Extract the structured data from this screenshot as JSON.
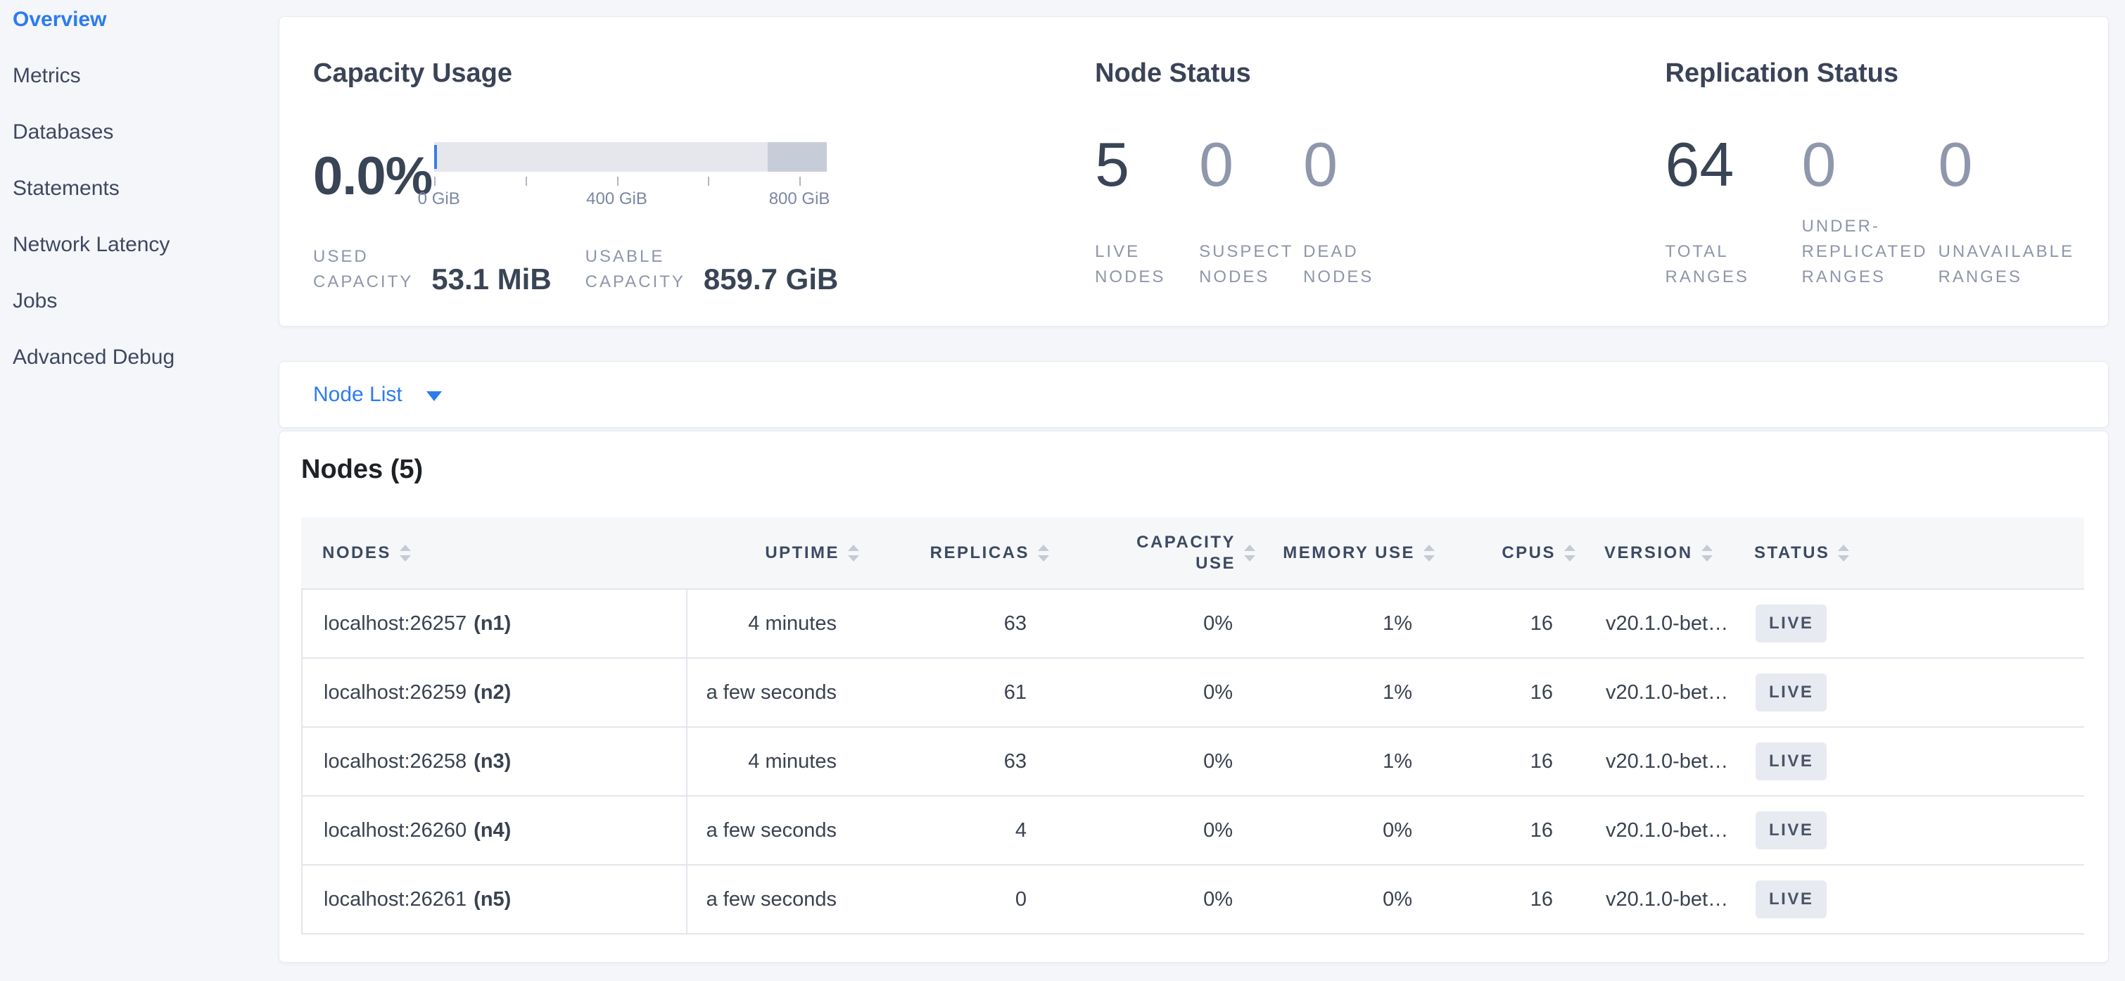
{
  "colors": {
    "accent_blue": "#2d7bf0",
    "bar_light": "#e5e7ed",
    "bar_dark": "#c6ccd8",
    "used_marker": "#3a7de2",
    "badge_bg": "#e8eaf1",
    "page_bg": "#f4f6fa"
  },
  "sidebar": {
    "items": [
      {
        "label": "Overview",
        "active": true
      },
      {
        "label": "Metrics",
        "active": false
      },
      {
        "label": "Databases",
        "active": false
      },
      {
        "label": "Statements",
        "active": false
      },
      {
        "label": "Network Latency",
        "active": false
      },
      {
        "label": "Jobs",
        "active": false
      },
      {
        "label": "Advanced Debug",
        "active": false
      }
    ]
  },
  "capacity": {
    "title": "Capacity Usage",
    "percent": "0.0%",
    "axis_labels": [
      "0 GiB",
      "400 GiB",
      "800 GiB"
    ],
    "used": {
      "label_line1": "USED",
      "label_line2": "CAPACITY",
      "value": "53.1 MiB"
    },
    "usable": {
      "label_line1": "USABLE",
      "label_line2": "CAPACITY",
      "value": "859.7 GiB"
    }
  },
  "nodeStatus": {
    "title": "Node Status",
    "stats": [
      {
        "value": "5",
        "lines": [
          "LIVE",
          "NODES"
        ]
      },
      {
        "value": "0",
        "lines": [
          "SUSPECT",
          "NODES"
        ]
      },
      {
        "value": "0",
        "lines": [
          "DEAD",
          "NODES"
        ]
      }
    ]
  },
  "replication": {
    "title": "Replication Status",
    "stats": [
      {
        "value": "64",
        "lines": [
          "TOTAL",
          "RANGES"
        ]
      },
      {
        "value": "0",
        "lines": [
          "UNDER-",
          "REPLICATED",
          "RANGES"
        ]
      },
      {
        "value": "0",
        "lines": [
          "UNAVAILABLE",
          "RANGES"
        ]
      }
    ]
  },
  "nodeList": {
    "label": "Node List"
  },
  "nodes": {
    "title": "Nodes (5)",
    "columns": [
      {
        "lines": [
          "NODES"
        ]
      },
      {
        "lines": [
          "UPTIME"
        ]
      },
      {
        "lines": [
          "REPLICAS"
        ]
      },
      {
        "lines": [
          "CAPACITY",
          "USE"
        ]
      },
      {
        "lines": [
          "MEMORY USE"
        ]
      },
      {
        "lines": [
          "CPUS"
        ]
      },
      {
        "lines": [
          "VERSION"
        ]
      },
      {
        "lines": [
          "STATUS"
        ]
      }
    ],
    "rows": [
      {
        "addr": "localhost:26257",
        "id": "(n1)",
        "uptime": "4 minutes",
        "replicas": "63",
        "capacity": "0%",
        "memory": "1%",
        "cpus": "16",
        "version": "v20.1.0-bet…",
        "status": "LIVE"
      },
      {
        "addr": "localhost:26259",
        "id": "(n2)",
        "uptime": "a few seconds",
        "replicas": "61",
        "capacity": "0%",
        "memory": "1%",
        "cpus": "16",
        "version": "v20.1.0-bet…",
        "status": "LIVE"
      },
      {
        "addr": "localhost:26258",
        "id": "(n3)",
        "uptime": "4 minutes",
        "replicas": "63",
        "capacity": "0%",
        "memory": "1%",
        "cpus": "16",
        "version": "v20.1.0-bet…",
        "status": "LIVE"
      },
      {
        "addr": "localhost:26260",
        "id": "(n4)",
        "uptime": "a few seconds",
        "replicas": "4",
        "capacity": "0%",
        "memory": "0%",
        "cpus": "16",
        "version": "v20.1.0-bet…",
        "status": "LIVE"
      },
      {
        "addr": "localhost:26261",
        "id": "(n5)",
        "uptime": "a few seconds",
        "replicas": "0",
        "capacity": "0%",
        "memory": "0%",
        "cpus": "16",
        "version": "v20.1.0-bet…",
        "status": "LIVE"
      }
    ]
  },
  "chart_data": {
    "type": "bar",
    "title": "Capacity Usage",
    "percent_used": 0.0,
    "used_capacity": "53.1 MiB",
    "usable_capacity": "859.7 GiB",
    "axis_unit": "GiB",
    "axis_ticks": [
      0,
      200,
      400,
      600,
      800
    ],
    "axis_tick_labels": [
      "0 GiB",
      "400 GiB",
      "800 GiB"
    ],
    "bar_total_gib": 860,
    "dark_segment_gib": [
      730,
      860
    ]
  }
}
